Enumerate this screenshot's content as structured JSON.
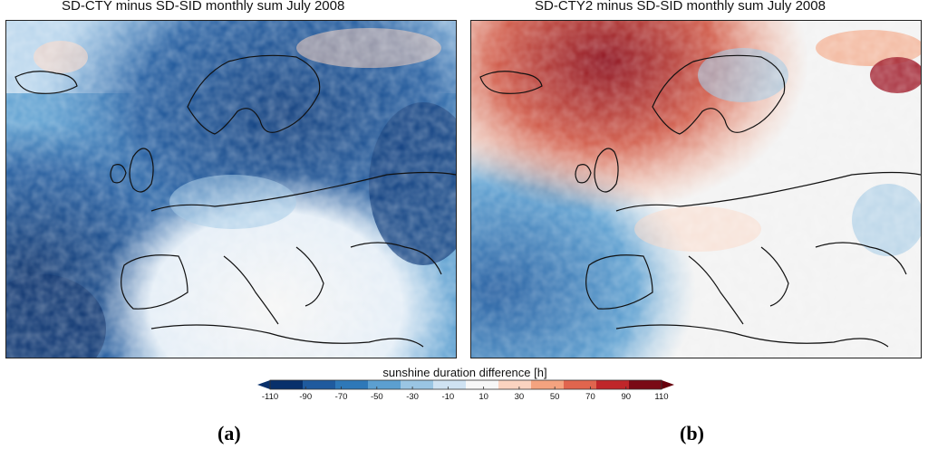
{
  "panels": [
    {
      "id": "a",
      "title": "SD-CTY minus SD-SID monthly sum July 2008",
      "label_open": "(",
      "label_letter": "a",
      "label_close": ")",
      "palette_bias": "blue"
    },
    {
      "id": "b",
      "title": "SD-CTY2 minus SD-SID monthly sum July 2008",
      "label_open": "(",
      "label_letter": "b",
      "label_close": ")",
      "palette_bias": "red"
    }
  ],
  "colorbar": {
    "title": "sunshine duration difference [h]",
    "ticks": [
      "-110",
      "-90",
      "-70",
      "-50",
      "-30",
      "-10",
      "10",
      "30",
      "50",
      "70",
      "90",
      "110"
    ],
    "colors": [
      "#08306b",
      "#1f5a9e",
      "#2e78b8",
      "#5c9fd0",
      "#9ac5e3",
      "#cfe2f2",
      "#f7f7f7",
      "#fbd3c0",
      "#f4a37f",
      "#e0654e",
      "#c0262a",
      "#7a0a16"
    ],
    "under_color": "#08306b",
    "over_color": "#67000d"
  }
}
